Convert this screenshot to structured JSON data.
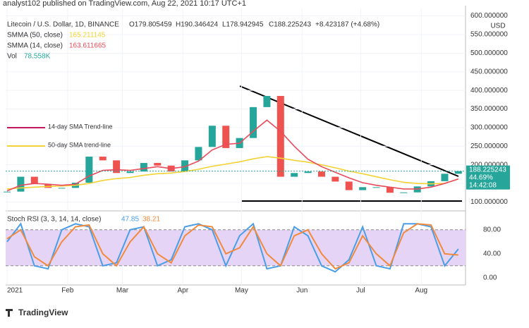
{
  "header": {
    "title": "analyst102 published on TradingView.com, Aug 22, 2021 10:17 UTC+1"
  },
  "chart_data": {
    "type": "candlestick",
    "symbol": "Litecoin / U.S. Dollar, 1D, BINANCE",
    "ohlc": [
      "O179.805459",
      "H190.346424",
      "L178.942945",
      "C188.225243",
      "+8.423187 (+4.68%)"
    ],
    "currency": "USD",
    "values": [
      128,
      168,
      148,
      138,
      138,
      152,
      222,
      212,
      178,
      182,
      205,
      198,
      182,
      212,
      248,
      305,
      245,
      272,
      355,
      385,
      168,
      178,
      182,
      168,
      155,
      132,
      140,
      140,
      125,
      126,
      142,
      156,
      176,
      183
    ],
    "up_color": "#26a69a",
    "down_color": "#ef5350",
    "indicators": [
      {
        "name": "SMMA (50, close)",
        "value": "165.211145",
        "color": "#f2d235",
        "values": [
          135,
          138,
          140,
          142,
          143,
          145,
          150,
          158,
          163,
          166,
          172,
          176,
          178,
          182,
          188,
          196,
          202,
          208,
          216,
          222,
          218,
          212,
          207,
          200,
          192,
          183,
          176,
          168,
          160,
          153,
          150,
          149,
          150,
          162
        ]
      },
      {
        "name": "SMMA (14, close)",
        "value": "163.611665",
        "color": "#e84b5c",
        "values": [
          130,
          145,
          150,
          148,
          145,
          148,
          170,
          185,
          187,
          185,
          190,
          195,
          190,
          195,
          210,
          240,
          255,
          258,
          290,
          320,
          290,
          250,
          215,
          195,
          180,
          165,
          152,
          145,
          140,
          135,
          135,
          140,
          150,
          162
        ]
      }
    ],
    "volume": {
      "name": "Vol",
      "value": "78.558K",
      "color": "#26a69a"
    },
    "annotations": [
      {
        "text": "14-day SMA Trend-line",
        "color": "#c2185b"
      },
      {
        "text": "50-day SMA trend-line",
        "color": "#f2d235"
      }
    ],
    "price_tag": [
      "188.225243",
      "44.69%",
      "14:42:08"
    ],
    "ylim": [
      80,
      620
    ],
    "yticks": [
      {
        "value": 100,
        "label": "100.000000"
      },
      {
        "value": 150,
        "label": "150.000000"
      },
      {
        "value": 200,
        "label": "200.000000"
      },
      {
        "value": 250,
        "label": "250.000000"
      },
      {
        "value": 300,
        "label": "300.000000"
      },
      {
        "value": 350,
        "label": "350.000000"
      },
      {
        "value": 400,
        "label": "400.000000"
      },
      {
        "value": 450,
        "label": "450.000000"
      },
      {
        "value": 500,
        "label": "500.000000"
      },
      {
        "value": 550,
        "label": "550.000000"
      },
      {
        "value": 600,
        "label": "600.000000"
      }
    ],
    "xticks": [
      {
        "value": 0,
        "label": "2021"
      },
      {
        "value": 31,
        "label": "Feb"
      },
      {
        "value": 59,
        "label": "Mar"
      },
      {
        "value": 90,
        "label": "Apr"
      },
      {
        "value": 120,
        "label": "May"
      },
      {
        "value": 151,
        "label": "Jun"
      },
      {
        "value": 181,
        "label": "Jul"
      },
      {
        "value": 212,
        "label": "Aug"
      }
    ],
    "stoch": {
      "name": "Stoch RSI (3, 3, 14, 14, close)",
      "ylim": [
        -12,
        108
      ],
      "yticks": [
        {
          "value": 0,
          "label": "0.00"
        },
        {
          "value": 40,
          "label": "40.00"
        },
        {
          "value": 80,
          "label": "80.00"
        }
      ],
      "band": [
        20,
        80
      ],
      "series": [
        {
          "value": "47.85",
          "color": "#4a9ee8",
          "values": [
            60,
            90,
            20,
            15,
            80,
            90,
            85,
            20,
            25,
            80,
            85,
            20,
            30,
            85,
            90,
            80,
            20,
            70,
            90,
            15,
            20,
            85,
            70,
            20,
            10,
            30,
            85,
            20,
            15,
            90,
            90,
            85,
            20,
            48
          ]
        },
        {
          "value": "38.21",
          "color": "#f08a3c",
          "values": [
            65,
            80,
            35,
            20,
            60,
            85,
            88,
            40,
            20,
            60,
            85,
            40,
            25,
            70,
            88,
            85,
            40,
            50,
            85,
            40,
            20,
            70,
            80,
            40,
            15,
            25,
            70,
            40,
            20,
            75,
            90,
            88,
            40,
            38
          ]
        }
      ]
    },
    "footer": "TradingView"
  }
}
